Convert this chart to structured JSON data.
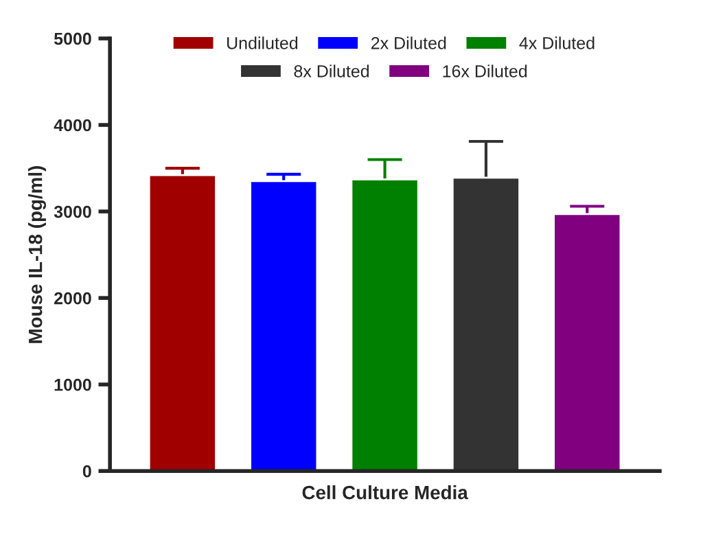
{
  "chart_data": {
    "type": "bar",
    "xlabel": "Cell Culture Media",
    "ylabel": "Mouse IL-18 (pg/ml)",
    "categories": [
      null
    ],
    "series": [
      {
        "name": "Undiluted",
        "color": "#a00000",
        "values": [
          3420
        ],
        "errors": [
          80
        ]
      },
      {
        "name": "2x Diluted",
        "color": "#0000ff",
        "values": [
          3350
        ],
        "errors": [
          80
        ]
      },
      {
        "name": "4x Diluted",
        "color": "#008000",
        "values": [
          3370
        ],
        "errors": [
          230
        ]
      },
      {
        "name": "8x Diluted",
        "color": "#333333",
        "values": [
          3390
        ],
        "errors": [
          420
        ]
      },
      {
        "name": "16x Diluted",
        "color": "#800080",
        "values": [
          2970
        ],
        "errors": [
          90
        ]
      }
    ],
    "ylim": [
      0,
      5000
    ],
    "yticks": [
      0,
      1000,
      2000,
      3000,
      4000,
      5000
    ],
    "grid": false,
    "legend": "top"
  }
}
